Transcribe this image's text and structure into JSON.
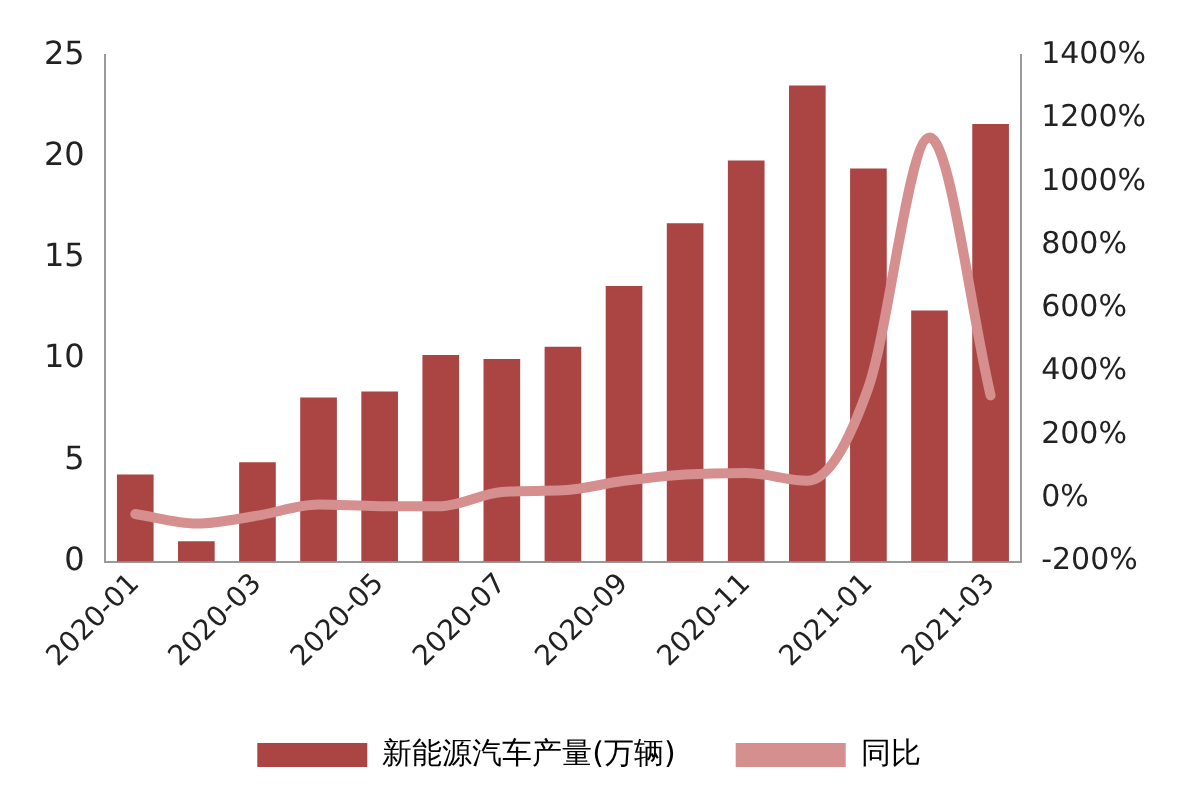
{
  "chart_data": {
    "type": "bar",
    "categories": [
      "2020-01",
      null,
      "2020-03",
      null,
      "2020-05",
      null,
      "2020-07",
      null,
      "2020-09",
      null,
      "2020-11",
      null,
      "2021-01",
      null,
      "2021-03"
    ],
    "series": [
      {
        "name": "新能源汽车产量(万辆)",
        "color": "#ab4543",
        "values": [
          4.3,
          1.0,
          4.9,
          8.1,
          8.4,
          10.2,
          10.0,
          10.6,
          13.6,
          16.7,
          19.8,
          23.5,
          19.4,
          12.4,
          21.6
        ]
      },
      {
        "name": "同比",
        "type": "line",
        "axis": "y2",
        "color": "#d48f8e",
        "values": [
          -50,
          -80,
          -55,
          -20,
          -25,
          -25,
          20,
          25,
          55,
          75,
          80,
          55,
          350,
          1140,
          325
        ]
      }
    ],
    "ylim": [
      0,
      25
    ],
    "yticks": [
      0,
      5,
      10,
      15,
      20,
      25
    ],
    "y2lim": [
      -200,
      1400
    ],
    "y2ticks": [
      {
        "value": -200,
        "label": "-200%"
      },
      {
        "value": 0,
        "label": "0%"
      },
      {
        "value": 200,
        "label": "200%"
      },
      {
        "value": 400,
        "label": "400%"
      },
      {
        "value": 600,
        "label": "600%"
      },
      {
        "value": 800,
        "label": "800%"
      },
      {
        "value": 1000,
        "label": "1000%"
      },
      {
        "value": 1200,
        "label": "1200%"
      },
      {
        "value": 1400,
        "label": "1400%"
      }
    ],
    "grid": false,
    "legend": "bottom",
    "marker": "none"
  }
}
